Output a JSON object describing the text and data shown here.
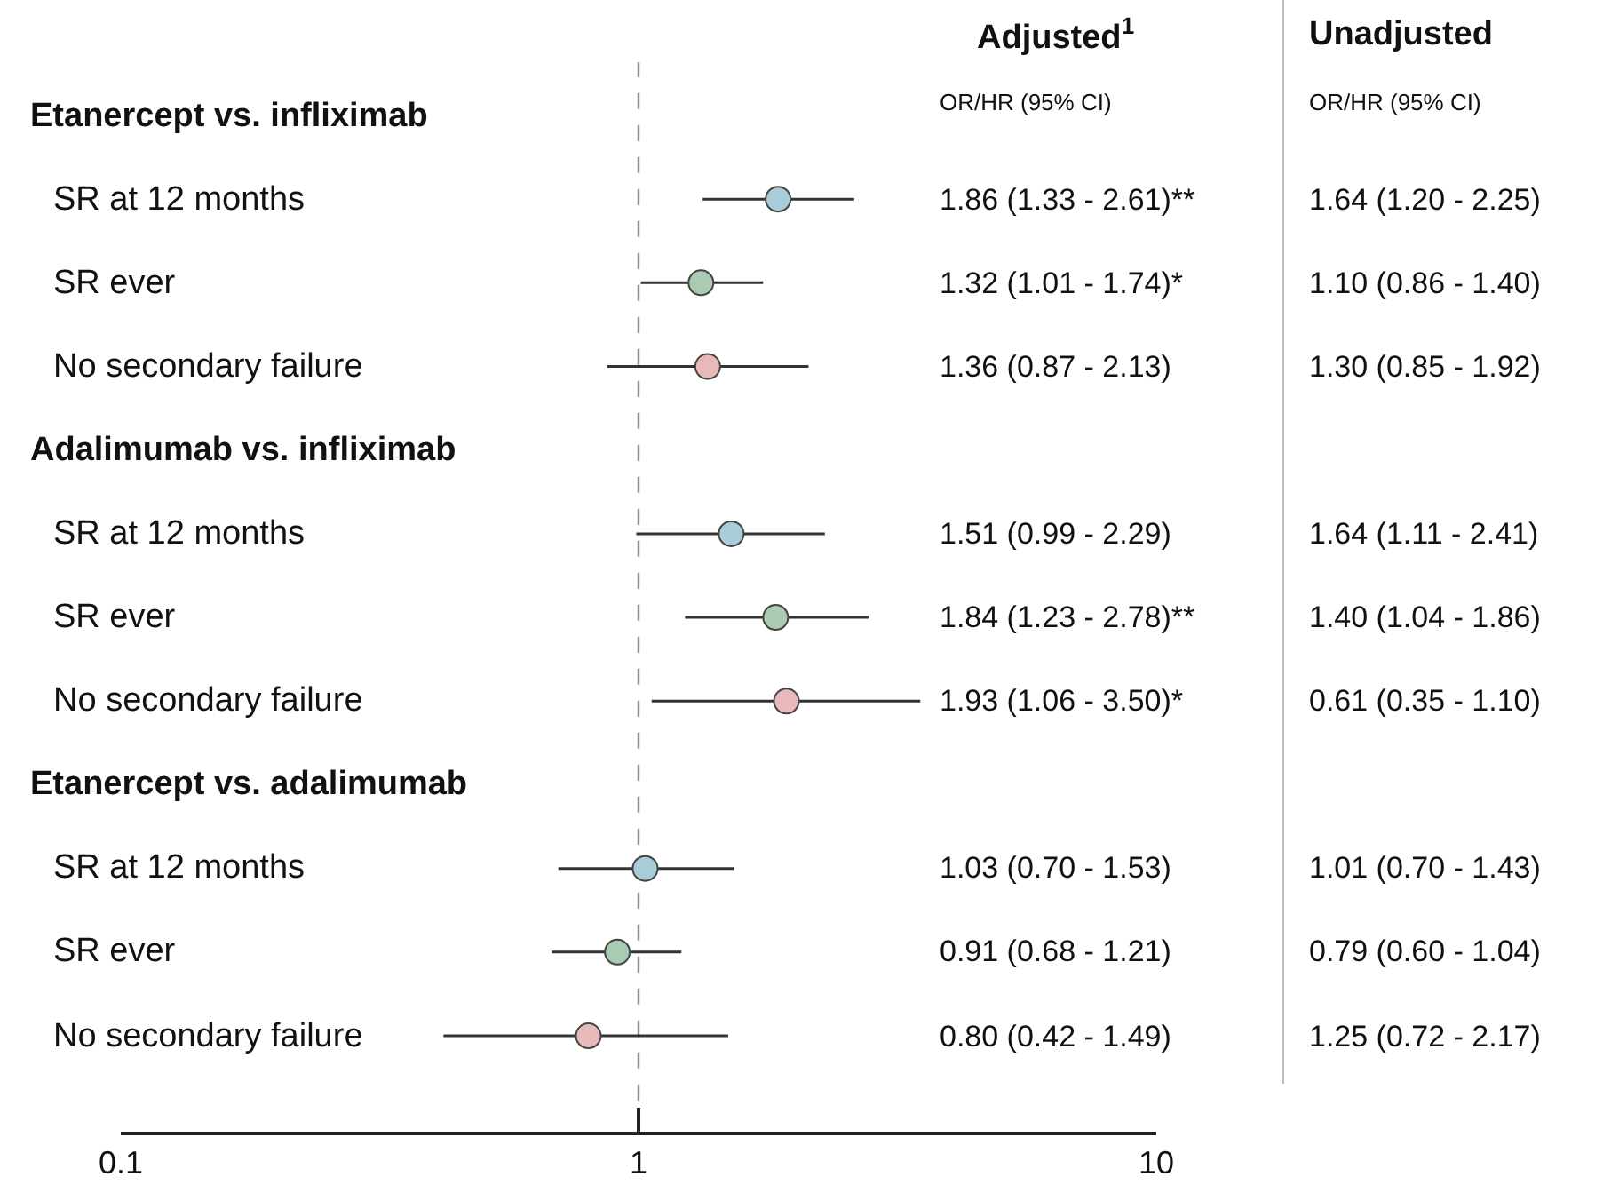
{
  "chart_data": {
    "type": "scatter",
    "orientation": "horizontal",
    "categories": [
      "Etanercept vs. infliximab",
      "SR at 12 months",
      "SR ever",
      "No secondary failure",
      "Adalimumab vs. infliximab",
      "SR at 12 months",
      "SR ever",
      "No secondary failure",
      "Etanercept vs. adalimumab",
      "SR at 12 months",
      "SR ever",
      "No secondary failure"
    ],
    "values": [
      null,
      1.86,
      1.32,
      1.36,
      null,
      1.51,
      1.84,
      1.93,
      null,
      1.03,
      0.91,
      0.8
    ],
    "errors": [
      null,
      [
        1.33,
        2.61
      ],
      [
        1.01,
        1.74
      ],
      [
        0.87,
        2.13
      ],
      null,
      [
        0.99,
        2.29
      ],
      [
        1.23,
        2.78
      ],
      [
        1.06,
        3.5
      ],
      null,
      [
        0.7,
        1.53
      ],
      [
        0.68,
        1.21
      ],
      [
        0.42,
        1.49
      ]
    ],
    "colors": [
      null,
      "#a9cdd8",
      "#a9cbb2",
      "#e8b9b9",
      null,
      "#a9cdd8",
      "#a9cbb2",
      "#e8b9b9",
      null,
      "#a9cdd8",
      "#a9cbb2",
      "#e8b9b9"
    ],
    "annotations": [
      "Adjusted$^{1}$",
      "OR/HR (95% CI)",
      "Unadjusted",
      "OR/HR (95% CI)",
      "1.86 (1.33 - 2.61)**",
      "1.32 (1.01 - 1.74)*",
      "1.36 (0.87 - 2.13)",
      "1.51 (0.99 - 2.29)",
      "1.84 (1.23 - 2.78)**",
      "1.93 (1.06 - 3.50)*",
      "1.03 (0.70 - 1.53)",
      "0.91 (0.68 - 1.21)",
      "0.80 (0.42 - 1.49)",
      "1.64 (1.20 - 2.25)",
      "1.10 (0.86 - 1.40)",
      "1.30 (0.85 - 1.92)",
      "1.64 (1.11 - 2.41)",
      "1.40 (1.04 - 1.86)",
      "0.61 (0.35 - 1.10)",
      "1.01 (0.70 - 1.43)",
      "0.79 (0.60 - 1.04)",
      "1.25 (0.72 - 2.17)"
    ],
    "log": "x",
    "xlim": [
      0.1,
      10
    ],
    "xticks": [
      0.1,
      1,
      10
    ],
    "marker": "circle",
    "ref_lines": [
      {
        "axis": "x",
        "value": 1,
        "line_style": "dashed",
        "color": "#888888"
      }
    ]
  }
}
